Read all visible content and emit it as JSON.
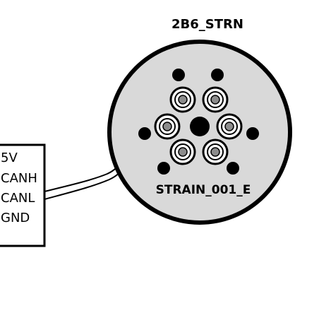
{
  "sensor": {
    "title": "2B6_STRN",
    "model_label": "STRAIN_001_E",
    "body_color": "#d9d9d9",
    "outline_color": "#000000"
  },
  "connector": {
    "pins": [
      {
        "label": "5V"
      },
      {
        "label": "CANH"
      },
      {
        "label": "CANL"
      },
      {
        "label": "GND"
      }
    ]
  }
}
